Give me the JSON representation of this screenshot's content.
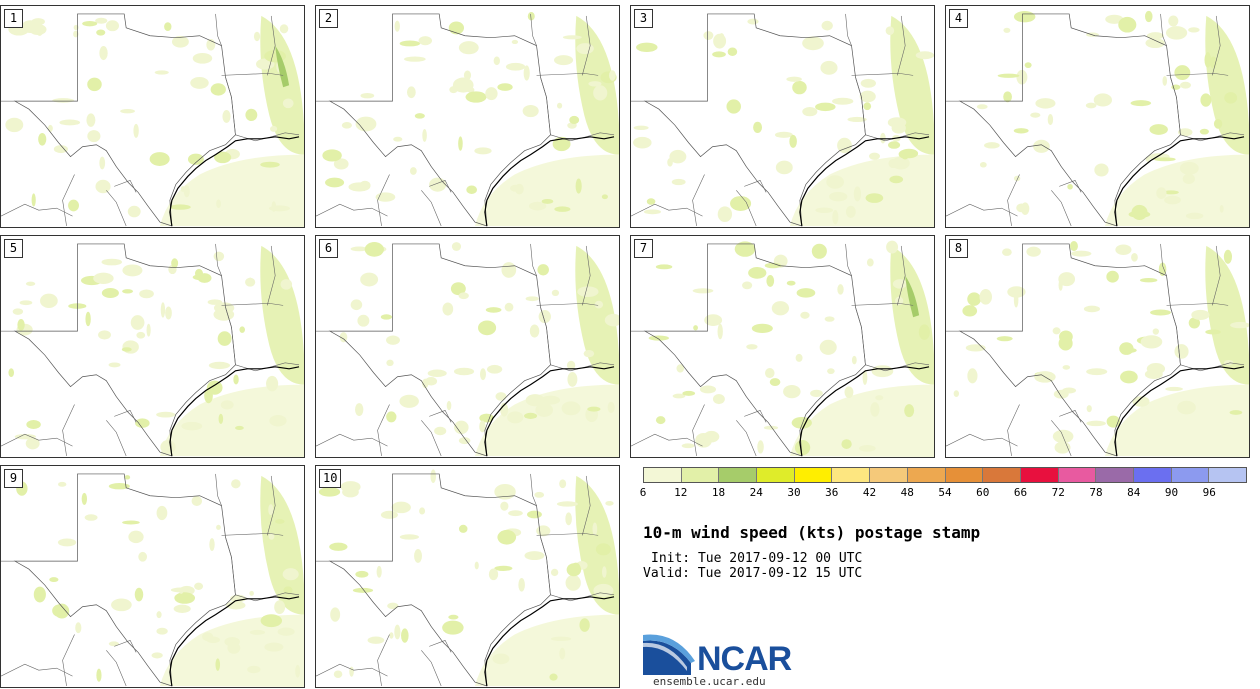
{
  "panels": [
    {
      "label": "1"
    },
    {
      "label": "2"
    },
    {
      "label": "3"
    },
    {
      "label": "4"
    },
    {
      "label": "5"
    },
    {
      "label": "6"
    },
    {
      "label": "7"
    },
    {
      "label": "8"
    },
    {
      "label": "9"
    },
    {
      "label": "10"
    }
  ],
  "colorbar": {
    "colors": [
      "#f3f7d6",
      "#e2f0a8",
      "#a6cc6a",
      "#dfec2a",
      "#ffee00",
      "#fde680",
      "#f5c97a",
      "#eda850",
      "#e69038",
      "#d9783a",
      "#e8103e",
      "#e85aa0",
      "#9a6aa8",
      "#6b6ff0",
      "#8c9aef",
      "#b6c4f2"
    ],
    "ticks": [
      "6",
      "12",
      "18",
      "24",
      "30",
      "36",
      "42",
      "48",
      "54",
      "60",
      "66",
      "72",
      "78",
      "84",
      "90",
      "96"
    ]
  },
  "title": "10-m wind speed (kts) postage stamp",
  "init": "Init: Tue 2017-09-12 00 UTC",
  "valid": "Valid: Tue 2017-09-12 15 UTC",
  "logo": {
    "text": "NCAR",
    "url": "ensemble.ucar.edu"
  }
}
